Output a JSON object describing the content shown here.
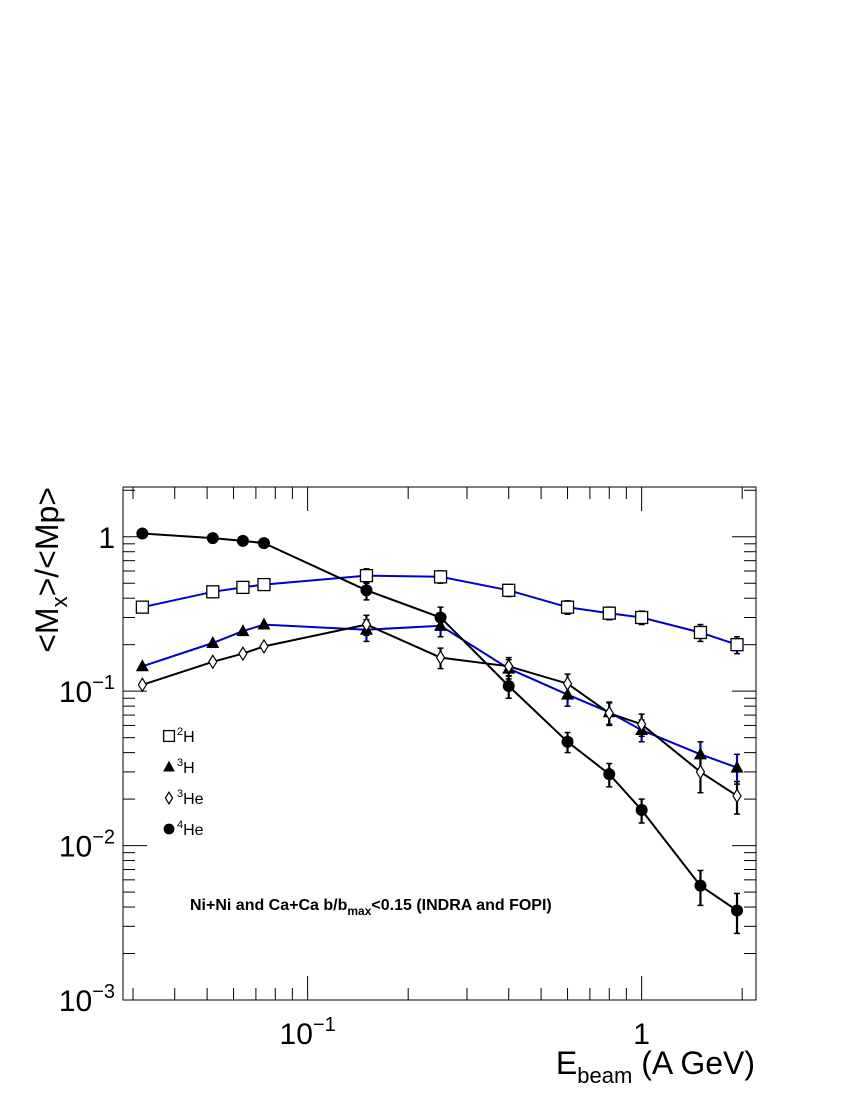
{
  "chart_data": {
    "type": "line",
    "x_scale": "log",
    "y_scale": "log",
    "xlim": [
      0.028,
      2.2
    ],
    "ylim": [
      0.001,
      2.1
    ],
    "x_ticks": [
      {
        "value": 0.1,
        "base": "10",
        "exp": "−1"
      },
      {
        "value": 1,
        "base": "1",
        "exp": ""
      }
    ],
    "y_ticks": [
      {
        "value": 0.001,
        "base": "10",
        "exp": "−3"
      },
      {
        "value": 0.01,
        "base": "10",
        "exp": "−2"
      },
      {
        "value": 0.1,
        "base": "10",
        "exp": "−1"
      },
      {
        "value": 1,
        "base": "1",
        "exp": ""
      }
    ],
    "xlabel": {
      "main": "E",
      "sub": "beam",
      "rest": " (A GeV)"
    },
    "ylabel": {
      "pre": "<M",
      "sub": "x",
      "post": ">/<Mp>"
    },
    "annotation": {
      "pre": "Ni+Ni and Ca+Ca b/b",
      "sub": "max",
      "post": "<0.15 (INDRA and FOPI)"
    },
    "legend_position": "left",
    "series": [
      {
        "name": "2H",
        "label_sup": "2",
        "label_main": "H",
        "marker": "open-square",
        "color": "#000000",
        "line_color": "#0000cc",
        "x": [
          0.032,
          0.052,
          0.064,
          0.074,
          0.15,
          0.25,
          0.4,
          0.6,
          0.8,
          1.0,
          1.5,
          1.93
        ],
        "y": [
          0.35,
          0.44,
          0.47,
          0.49,
          0.56,
          0.55,
          0.45,
          0.35,
          0.32,
          0.3,
          0.24,
          0.2
        ],
        "err": [
          0,
          0,
          0,
          0,
          0.06,
          0.05,
          0.04,
          0.035,
          0.03,
          0.03,
          0.03,
          0.025
        ]
      },
      {
        "name": "3H",
        "label_sup": "3",
        "label_main": "H",
        "marker": "filled-triangle",
        "color": "#000000",
        "line_color": "#0000cc",
        "x": [
          0.032,
          0.052,
          0.064,
          0.074,
          0.15,
          0.25,
          0.4,
          0.6,
          0.8,
          1.0,
          1.5,
          1.93
        ],
        "y": [
          0.145,
          0.205,
          0.245,
          0.27,
          0.25,
          0.265,
          0.14,
          0.095,
          0.073,
          0.056,
          0.039,
          0.032
        ],
        "err": [
          0,
          0,
          0,
          0,
          0.04,
          0.04,
          0.02,
          0.015,
          0.012,
          0.009,
          0.008,
          0.007
        ]
      },
      {
        "name": "3He",
        "label_sup": "3",
        "label_main": "He",
        "marker": "open-diamond",
        "color": "#000000",
        "line_color": "#000000",
        "x": [
          0.032,
          0.052,
          0.064,
          0.074,
          0.15,
          0.25,
          0.4,
          0.6,
          0.8,
          1.0,
          1.5,
          1.93
        ],
        "y": [
          0.11,
          0.155,
          0.175,
          0.195,
          0.27,
          0.165,
          0.145,
          0.112,
          0.072,
          0.061,
          0.03,
          0.021
        ],
        "err": [
          0,
          0,
          0,
          0,
          0.04,
          0.025,
          0.02,
          0.017,
          0.012,
          0.01,
          0.008,
          0.005
        ]
      },
      {
        "name": "4He",
        "label_sup": "4",
        "label_main": "He",
        "marker": "filled-circle",
        "color": "#000000",
        "line_color": "#000000",
        "x": [
          0.032,
          0.052,
          0.064,
          0.074,
          0.15,
          0.25,
          0.4,
          0.6,
          0.8,
          1.0,
          1.5,
          1.93
        ],
        "y": [
          1.05,
          0.98,
          0.94,
          0.91,
          0.45,
          0.3,
          0.108,
          0.047,
          0.029,
          0.017,
          0.0055,
          0.0038
        ],
        "err": [
          0,
          0,
          0,
          0,
          0.06,
          0.05,
          0.018,
          0.007,
          0.005,
          0.003,
          0.0014,
          0.0011
        ]
      }
    ]
  }
}
